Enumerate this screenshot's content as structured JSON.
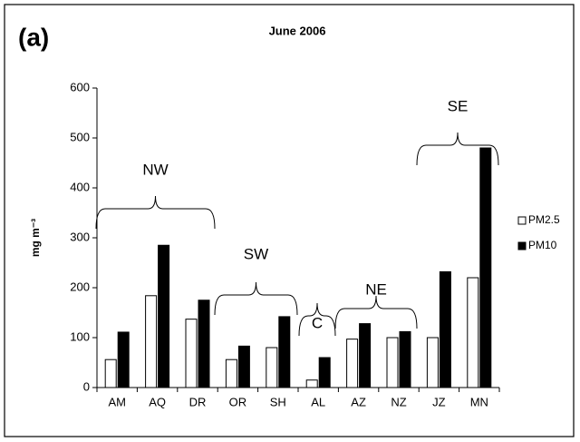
{
  "chart_data": {
    "type": "bar",
    "panel_label": "(a)",
    "title": "June 2006",
    "ylabel": "mg m⁻³",
    "categories": [
      "AM",
      "AQ",
      "DR",
      "OR",
      "SH",
      "AL",
      "AZ",
      "NZ",
      "JZ",
      "MN"
    ],
    "series": [
      {
        "name": "PM2.5",
        "color": "#ffffff",
        "values": [
          56,
          184,
          137,
          56,
          80,
          15,
          97,
          100,
          100,
          220
        ]
      },
      {
        "name": "PM10",
        "color": "#000000",
        "values": [
          111,
          285,
          175,
          83,
          142,
          60,
          128,
          112,
          232,
          480
        ]
      }
    ],
    "ylim": [
      0,
      600
    ],
    "yticks": [
      0,
      100,
      200,
      300,
      400,
      500,
      600
    ],
    "legend": "right",
    "annotations": [
      "NW",
      "SW",
      "C",
      "NE",
      "SE"
    ]
  }
}
